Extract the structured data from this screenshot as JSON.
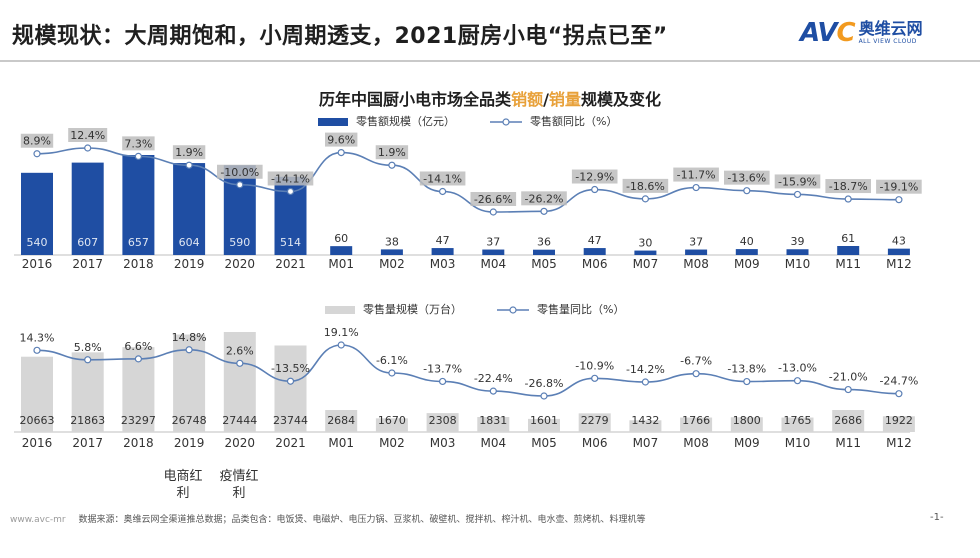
{
  "page": {
    "title": "规模现状：大周期饱和，小周期透支，2021厨房小电“拐点已至”",
    "logo_mark": "AVC",
    "logo_cn": "奥维云网",
    "logo_en": "ALL VIEW CLOUD",
    "footer_url": "www.avc-mr",
    "footer_source": "数据来源：奥维云网全渠道推总数据；品类包含：电饭煲、电磁炉、电压力锅、豆浆机、破壁机、搅拌机、榨汁机、电水壶、煎烤机、料理机等",
    "page_number": "-1-",
    "notes": [
      {
        "text": "电商红利"
      },
      {
        "text": "疫情红利"
      }
    ]
  },
  "chart_data": [
    {
      "type": "bar",
      "title_parts": [
        "历年中国厨小电市场全品类",
        "销额",
        "/",
        "销量",
        "规模及变化"
      ],
      "categories": [
        "2016",
        "2017",
        "2018",
        "2019",
        "2020",
        "2021",
        "M01",
        "M02",
        "M03",
        "M04",
        "M05",
        "M06",
        "M07",
        "M08",
        "M09",
        "M10",
        "M11",
        "M12"
      ],
      "series": [
        {
          "name": "零售额规模（亿元）",
          "kind": "bar",
          "color": "#1f4ea3",
          "values": [
            540,
            607,
            657,
            604,
            590,
            514,
            60,
            38,
            47,
            37,
            36,
            47,
            30,
            37,
            40,
            39,
            61,
            43
          ]
        },
        {
          "name": "零售额同比（%）",
          "kind": "line",
          "color": "#5b7fb5",
          "values": [
            8.9,
            12.4,
            7.3,
            1.9,
            -10.0,
            -14.1,
            9.6,
            1.9,
            -14.1,
            -26.6,
            -26.2,
            -12.9,
            -18.6,
            -11.7,
            -13.6,
            -15.9,
            -18.7,
            -19.1
          ],
          "labels": [
            "8.9%",
            "12.4%",
            "7.3%",
            "1.9%",
            "-10.0%",
            "-14.1%",
            "9.6%",
            "1.9%",
            "-14.1%",
            "-26.6%",
            "-26.2%",
            "-12.9%",
            "-18.6%",
            "-11.7%",
            "-13.6%",
            "-15.9%",
            "-18.7%",
            "-19.1%"
          ]
        }
      ]
    },
    {
      "type": "bar",
      "categories": [
        "2016",
        "2017",
        "2018",
        "2019",
        "2020",
        "2021",
        "M01",
        "M02",
        "M03",
        "M04",
        "M05",
        "M06",
        "M07",
        "M08",
        "M09",
        "M10",
        "M11",
        "M12"
      ],
      "series": [
        {
          "name": "零售量规模（万台）",
          "kind": "bar",
          "color": "#d6d6d6",
          "values": [
            20663,
            21863,
            23297,
            26748,
            27444,
            23744,
            2684,
            1670,
            2308,
            1831,
            1601,
            2279,
            1432,
            1766,
            1800,
            1765,
            2686,
            1922
          ]
        },
        {
          "name": "零售量同比（%）",
          "kind": "line",
          "color": "#5b7fb5",
          "values": [
            14.3,
            5.8,
            6.6,
            14.8,
            2.6,
            -13.5,
            19.1,
            -6.1,
            -13.7,
            -22.4,
            -26.8,
            -10.9,
            -14.2,
            -6.7,
            -13.8,
            -13.0,
            -21.0,
            -24.7
          ],
          "labels": [
            "14.3%",
            "5.8%",
            "6.6%",
            "14.8%",
            "2.6%",
            "-13.5%",
            "19.1%",
            "-6.1%",
            "-13.7%",
            "-22.4%",
            "-26.8%",
            "-10.9%",
            "-14.2%",
            "-6.7%",
            "-13.8%",
            "-13.0%",
            "-21.0%",
            "-24.7%"
          ]
        }
      ]
    }
  ]
}
